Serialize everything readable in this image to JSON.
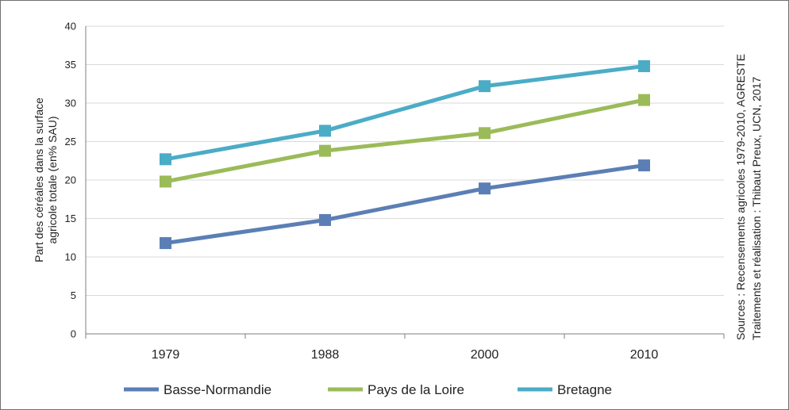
{
  "chart_data": {
    "type": "line",
    "title": "",
    "xlabel": "",
    "ylabel": [
      "Part des céréales dans la surface",
      "agricole totale (en% SAU)"
    ],
    "ylim": [
      0,
      40
    ],
    "yticks": [
      0,
      5,
      10,
      15,
      20,
      25,
      30,
      35,
      40
    ],
    "categories": [
      "1979",
      "1988",
      "2000",
      "2010"
    ],
    "series": [
      {
        "name": "Basse-Normandie",
        "color": "#5b7fb5",
        "values": [
          11.8,
          14.8,
          18.9,
          21.9
        ]
      },
      {
        "name": "Pays de la Loire",
        "color": "#9bbb59",
        "values": [
          19.8,
          23.8,
          26.1,
          30.4
        ]
      },
      {
        "name": "Bretagne",
        "color": "#4bacc6",
        "values": [
          22.7,
          26.4,
          32.2,
          34.8
        ]
      }
    ],
    "grid": true,
    "legend_position": "bottom",
    "source": [
      "Sources : Recensements agricoles 1979-2010, AGRESTE",
      "Traitements et réalisation : Thibaut Preux, UCN, 2017"
    ]
  }
}
